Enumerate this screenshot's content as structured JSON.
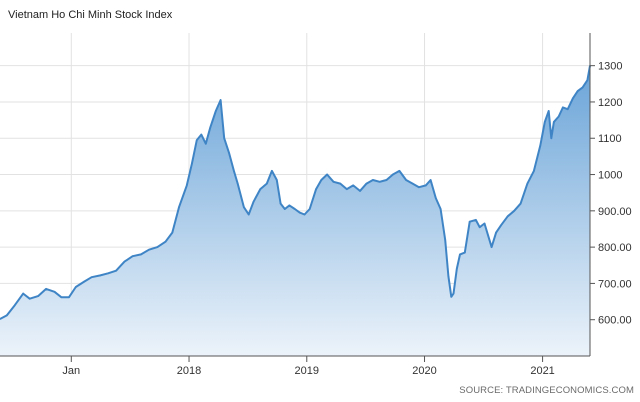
{
  "chart_data": {
    "type": "area",
    "title": "Vietnam Ho Chi Minh Stock Index",
    "xlabel": "",
    "ylabel": "",
    "source": "SOURCE: TRADINGECONOMICS.COM",
    "x_ticks": [
      {
        "label": "Jan",
        "date": "2017-01-01"
      },
      {
        "label": "2018",
        "date": "2018-01-01"
      },
      {
        "label": "2019",
        "date": "2019-01-01"
      },
      {
        "label": "2020",
        "date": "2020-01-01"
      },
      {
        "label": "2021",
        "date": "2021-01-01"
      }
    ],
    "y_ticks": [
      {
        "label": "600.00",
        "value": 600
      },
      {
        "label": "700.00",
        "value": 700
      },
      {
        "label": "800.00",
        "value": 800
      },
      {
        "label": "900.00",
        "value": 900
      },
      {
        "label": "1000",
        "value": 1000
      },
      {
        "label": "1100",
        "value": 1100
      },
      {
        "label": "1200",
        "value": 1200
      },
      {
        "label": "1300",
        "value": 1300
      }
    ],
    "ylim": [
      500,
      1390
    ],
    "xlim": [
      "2016-05-25",
      "2021-05-28"
    ],
    "grid": true,
    "y_axis_position": "right",
    "colors": {
      "line": "#3f85c6",
      "fill_top": "#6aa4d8",
      "fill_bottom": "#ecf3fa",
      "grid": "#e2e2e2"
    },
    "series": [
      {
        "x": [
          "2016-05-25",
          "2016-06-15",
          "2016-07-10",
          "2016-08-05",
          "2016-08-25",
          "2016-09-20",
          "2016-10-15",
          "2016-11-10",
          "2016-12-01",
          "2016-12-25",
          "2017-01-15",
          "2017-02-10",
          "2017-03-05",
          "2017-04-01",
          "2017-04-25",
          "2017-05-20",
          "2017-06-15",
          "2017-07-10",
          "2017-08-05",
          "2017-08-30",
          "2017-09-25",
          "2017-10-20",
          "2017-11-10",
          "2017-12-01",
          "2017-12-25",
          "2018-01-10",
          "2018-01-25",
          "2018-02-08",
          "2018-02-22",
          "2018-03-08",
          "2018-03-25",
          "2018-04-09",
          "2018-04-20",
          "2018-05-05",
          "2018-05-20",
          "2018-06-01",
          "2018-06-20",
          "2018-07-05",
          "2018-07-20",
          "2018-08-10",
          "2018-08-30",
          "2018-09-15",
          "2018-09-30",
          "2018-10-12",
          "2018-10-25",
          "2018-11-08",
          "2018-11-25",
          "2018-12-10",
          "2018-12-25",
          "2019-01-10",
          "2019-01-30",
          "2019-02-15",
          "2019-03-05",
          "2019-03-25",
          "2019-04-15",
          "2019-05-05",
          "2019-05-25",
          "2019-06-15",
          "2019-07-05",
          "2019-07-25",
          "2019-08-15",
          "2019-09-05",
          "2019-09-25",
          "2019-10-15",
          "2019-11-05",
          "2019-11-25",
          "2019-12-15",
          "2020-01-05",
          "2020-01-20",
          "2020-02-05",
          "2020-02-20",
          "2020-03-05",
          "2020-03-15",
          "2020-03-24",
          "2020-03-31",
          "2020-04-10",
          "2020-04-20",
          "2020-05-05",
          "2020-05-20",
          "2020-06-08",
          "2020-06-20",
          "2020-07-05",
          "2020-07-27",
          "2020-08-10",
          "2020-08-25",
          "2020-09-15",
          "2020-10-05",
          "2020-10-25",
          "2020-11-15",
          "2020-12-05",
          "2020-12-25",
          "2021-01-08",
          "2021-01-20",
          "2021-01-28",
          "2021-02-05",
          "2021-02-20",
          "2021-03-05",
          "2021-03-20",
          "2021-04-05",
          "2021-04-20",
          "2021-05-05",
          "2021-05-20",
          "2021-05-28"
        ],
        "y": [
          602,
          612,
          640,
          672,
          658,
          665,
          685,
          677,
          662,
          662,
          690,
          705,
          717,
          722,
          728,
          735,
          760,
          775,
          780,
          793,
          800,
          815,
          840,
          910,
          970,
          1030,
          1095,
          1110,
          1085,
          1130,
          1175,
          1205,
          1100,
          1060,
          1010,
          975,
          910,
          890,
          925,
          960,
          975,
          1010,
          985,
          920,
          905,
          915,
          905,
          895,
          890,
          905,
          960,
          985,
          1000,
          980,
          975,
          960,
          970,
          955,
          975,
          985,
          980,
          985,
          1000,
          1010,
          985,
          975,
          965,
          970,
          985,
          935,
          905,
          820,
          720,
          663,
          672,
          740,
          780,
          785,
          870,
          875,
          855,
          865,
          800,
          840,
          860,
          885,
          900,
          920,
          975,
          1010,
          1080,
          1145,
          1175,
          1100,
          1145,
          1160,
          1185,
          1180,
          1210,
          1230,
          1240,
          1260,
          1300
        ]
      }
    ]
  }
}
